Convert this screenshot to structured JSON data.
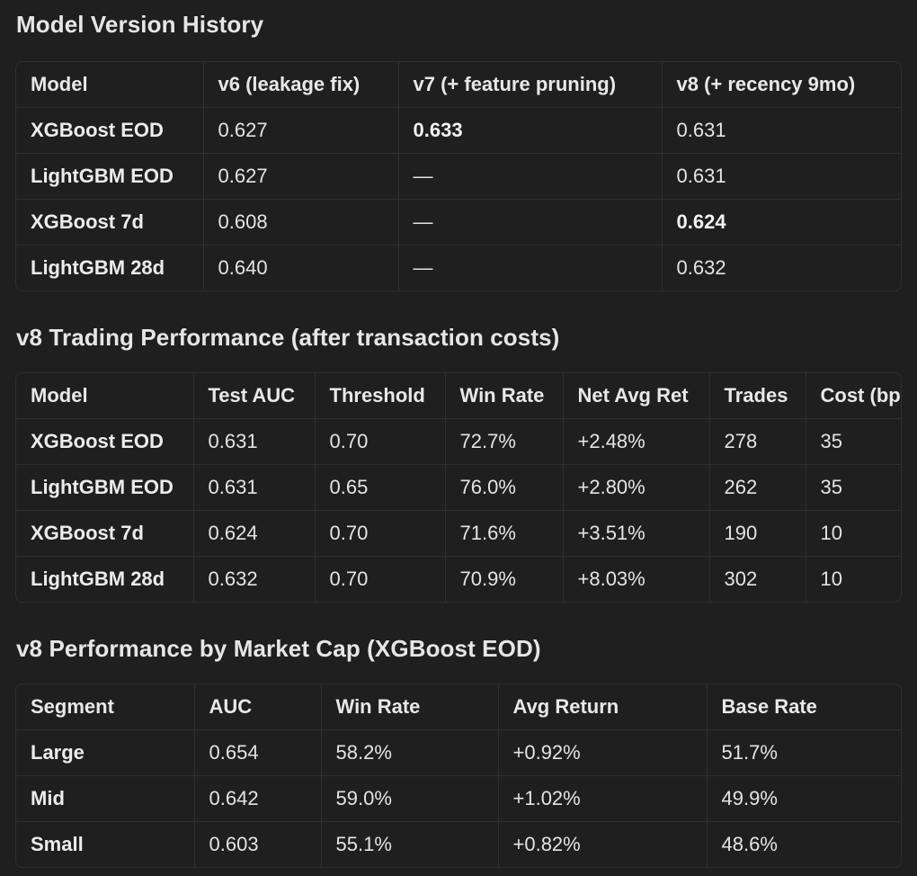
{
  "sections": [
    {
      "title": "Model Version History",
      "headers": [
        "Model",
        "v6 (leakage fix)",
        "v7 (+ feature pruning)",
        "v8 (+ recency 9mo)"
      ],
      "rows": [
        [
          "XGBoost EOD",
          "0.627",
          "0.633",
          "0.631"
        ],
        [
          "LightGBM EOD",
          "0.627",
          "—",
          "0.631"
        ],
        [
          "XGBoost 7d",
          "0.608",
          "—",
          "0.624"
        ],
        [
          "LightGBM 28d",
          "0.640",
          "—",
          "0.632"
        ]
      ]
    },
    {
      "title": "v8 Trading Performance (after transaction costs)",
      "headers": [
        "Model",
        "Test AUC",
        "Threshold",
        "Win Rate",
        "Net Avg Ret",
        "Trades",
        "Cost (bps)"
      ],
      "rows": [
        [
          "XGBoost EOD",
          "0.631",
          "0.70",
          "72.7%",
          "+2.48%",
          "278",
          "35"
        ],
        [
          "LightGBM EOD",
          "0.631",
          "0.65",
          "76.0%",
          "+2.80%",
          "262",
          "35"
        ],
        [
          "XGBoost 7d",
          "0.624",
          "0.70",
          "71.6%",
          "+3.51%",
          "190",
          "10"
        ],
        [
          "LightGBM 28d",
          "0.632",
          "0.70",
          "70.9%",
          "+8.03%",
          "302",
          "10"
        ]
      ]
    },
    {
      "title": "v8 Performance by Market Cap (XGBoost EOD)",
      "headers": [
        "Segment",
        "AUC",
        "Win Rate",
        "Avg Return",
        "Base Rate"
      ],
      "rows": [
        [
          "Large",
          "0.654",
          "58.2%",
          "+0.92%",
          "51.7%"
        ],
        [
          "Mid",
          "0.642",
          "59.0%",
          "+1.02%",
          "49.9%"
        ],
        [
          "Small",
          "0.603",
          "55.1%",
          "+0.82%",
          "48.6%"
        ]
      ]
    }
  ]
}
